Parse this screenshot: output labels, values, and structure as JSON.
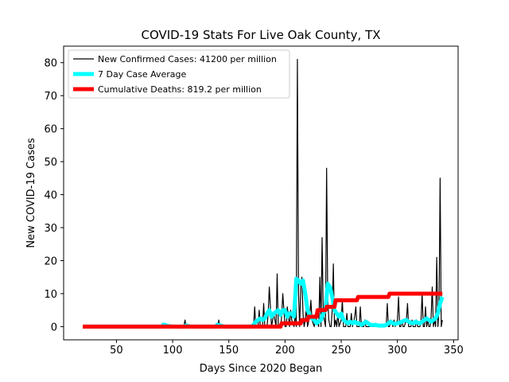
{
  "chart_data": {
    "type": "line",
    "title": "COVID-19 Stats For Live Oak County, TX",
    "xlabel": "Days Since 2020 Began",
    "ylabel": "New COVID-19 Cases",
    "xlim": [
      3,
      354
    ],
    "ylim": [
      -4,
      85
    ],
    "xticks": [
      50,
      100,
      150,
      200,
      250,
      300,
      350
    ],
    "yticks": [
      0,
      10,
      20,
      30,
      40,
      50,
      60,
      70,
      80
    ],
    "grid": false,
    "legend_position": "top-left",
    "series": [
      {
        "name": "New Confirmed Cases: 41200 per million",
        "color": "#000000",
        "x": [
          20,
          90,
          91,
          92,
          93,
          94,
          110,
          111,
          112,
          113,
          140,
          141,
          142,
          143,
          172,
          173,
          174,
          176,
          177,
          178,
          180,
          181,
          182,
          184,
          185,
          186,
          188,
          189,
          190,
          192,
          193,
          194,
          196,
          197,
          198,
          200,
          201,
          202,
          204,
          205,
          206,
          208,
          209,
          210,
          211,
          212,
          213,
          214,
          215,
          216,
          217,
          218,
          219,
          220,
          222,
          223,
          224,
          226,
          227,
          228,
          230,
          231,
          232,
          233,
          234,
          235,
          236,
          237,
          238,
          239,
          240,
          241,
          242,
          243,
          244,
          245,
          246,
          247,
          248,
          250,
          251,
          252,
          254,
          255,
          256,
          258,
          259,
          260,
          262,
          263,
          264,
          266,
          267,
          268,
          270,
          271,
          272,
          280,
          281,
          282,
          290,
          291,
          292,
          293,
          294,
          296,
          297,
          298,
          300,
          301,
          302,
          303,
          304,
          305,
          306,
          308,
          309,
          310,
          312,
          313,
          314,
          316,
          317,
          318,
          320,
          321,
          322,
          323,
          324,
          325,
          326,
          327,
          328,
          329,
          330,
          331,
          332,
          333,
          334,
          335,
          336,
          337,
          338,
          339,
          340
        ],
        "y": [
          0,
          0,
          1,
          0,
          1,
          0,
          0,
          2,
          0,
          0,
          0,
          2,
          0,
          0,
          0,
          6,
          0,
          0,
          5,
          0,
          0,
          7,
          0,
          0,
          4,
          12,
          0,
          2,
          4,
          0,
          16,
          0,
          0,
          3,
          10,
          0,
          0,
          6,
          0,
          5,
          2,
          0,
          4,
          0,
          81,
          10,
          0,
          12,
          15,
          4,
          0,
          2,
          6,
          0,
          3,
          8,
          2,
          0,
          4,
          2,
          0,
          15,
          0,
          27,
          4,
          2,
          0,
          48,
          8,
          2,
          0,
          0,
          5,
          19,
          0,
          2,
          0,
          4,
          0,
          2,
          8,
          0,
          0,
          4,
          0,
          0,
          4,
          0,
          3,
          6,
          0,
          0,
          6,
          0,
          0,
          2,
          0,
          0,
          1,
          0,
          0,
          7,
          0,
          0,
          2,
          0,
          2,
          0,
          2,
          9,
          0,
          0,
          2,
          0,
          0,
          2,
          7,
          0,
          0,
          2,
          0,
          0,
          2,
          0,
          0,
          2,
          10,
          0,
          0,
          6,
          0,
          2,
          0,
          0,
          3,
          12,
          0,
          2,
          0,
          21,
          0,
          5,
          45,
          0,
          2
        ]
      },
      {
        "name": "7 Day Case Average",
        "color": "#00ffff",
        "x": [
          20,
          90,
          92,
          94,
          96,
          100,
          110,
          112,
          114,
          116,
          120,
          130,
          138,
          140,
          142,
          144,
          146,
          150,
          160,
          170,
          172,
          174,
          176,
          178,
          180,
          182,
          184,
          186,
          188,
          190,
          192,
          194,
          196,
          198,
          200,
          202,
          204,
          206,
          208,
          210,
          212,
          214,
          216,
          218,
          220,
          222,
          224,
          226,
          228,
          230,
          232,
          234,
          236,
          238,
          240,
          242,
          244,
          246,
          248,
          250,
          252,
          254,
          256,
          258,
          260,
          262,
          264,
          266,
          268,
          270,
          272,
          274,
          276,
          278,
          280,
          282,
          284,
          286,
          288,
          290,
          292,
          294,
          296,
          298,
          300,
          302,
          304,
          306,
          308,
          310,
          312,
          314,
          316,
          318,
          320,
          322,
          324,
          326,
          328,
          330,
          332,
          334,
          336,
          338,
          340
        ],
        "y": [
          0,
          0,
          0.6,
          0.4,
          0.2,
          0,
          0,
          0.4,
          0.2,
          0,
          0,
          0,
          0,
          0.6,
          0.4,
          0.2,
          0,
          0,
          0,
          0,
          0.5,
          1.5,
          2,
          2.5,
          2,
          2.5,
          4,
          5,
          3,
          4,
          4.5,
          5,
          3.5,
          5,
          5,
          3,
          4,
          4,
          3,
          14.5,
          14,
          13,
          14,
          10,
          5,
          3.5,
          2.5,
          2,
          1,
          1.5,
          2,
          4,
          5,
          13,
          12,
          9,
          5,
          4,
          3,
          4,
          2,
          1.5,
          1,
          1.5,
          1,
          1.5,
          1,
          1,
          0.5,
          1,
          1.5,
          1,
          0.5,
          0.5,
          0.5,
          0.4,
          0.3,
          0.3,
          0.3,
          0.5,
          1,
          1.5,
          1,
          0.8,
          1,
          1.2,
          1.5,
          1.8,
          2,
          1.5,
          1.2,
          1,
          1.5,
          1.2,
          1,
          1.5,
          2,
          2.5,
          2,
          1.5,
          2,
          2.5,
          4,
          7,
          9
        ]
      },
      {
        "name": "Cumulative Deaths: 819.2 per million",
        "color": "#ff0000",
        "x": [
          20,
          196,
          197,
          214,
          215,
          220,
          221,
          228,
          229,
          236,
          237,
          244,
          245,
          264,
          265,
          292,
          293,
          340
        ],
        "y": [
          0,
          0,
          1,
          1,
          2,
          2,
          3,
          3,
          5,
          5,
          6,
          6,
          8,
          8,
          9,
          9,
          10,
          10
        ]
      }
    ]
  }
}
